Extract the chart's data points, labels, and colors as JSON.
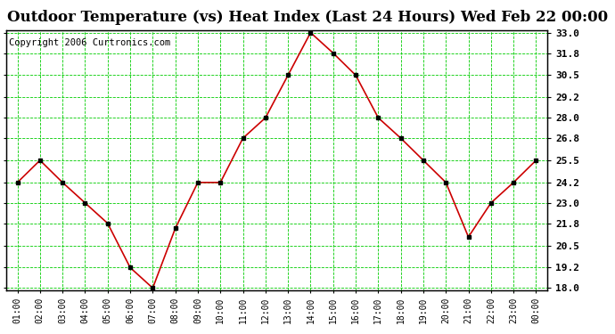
{
  "title": "Outdoor Temperature (vs) Heat Index (Last 24 Hours) Wed Feb 22 00:00",
  "copyright": "Copyright 2006 Curtronics.com",
  "x_labels": [
    "01:00",
    "02:00",
    "03:00",
    "04:00",
    "05:00",
    "06:00",
    "07:00",
    "08:00",
    "09:00",
    "10:00",
    "11:00",
    "12:00",
    "13:00",
    "14:00",
    "15:00",
    "16:00",
    "17:00",
    "18:00",
    "19:00",
    "20:00",
    "21:00",
    "22:00",
    "23:00",
    "00:00"
  ],
  "y_values": [
    24.2,
    25.5,
    24.2,
    23.0,
    21.8,
    19.2,
    18.0,
    21.5,
    24.2,
    24.2,
    26.8,
    28.0,
    30.5,
    33.0,
    31.8,
    30.5,
    28.0,
    26.8,
    25.5,
    24.2,
    21.0,
    23.0,
    24.2,
    25.5
  ],
  "ylim_min": 18.0,
  "ylim_max": 33.0,
  "yticks": [
    18.0,
    19.2,
    20.5,
    21.8,
    23.0,
    24.2,
    25.5,
    26.8,
    28.0,
    29.2,
    30.5,
    31.8,
    33.0
  ],
  "line_color": "#cc0000",
  "marker_color": "#000000",
  "grid_color": "#00cc00",
  "bg_color": "#ffffff",
  "title_fontsize": 12,
  "copyright_fontsize": 7.5
}
